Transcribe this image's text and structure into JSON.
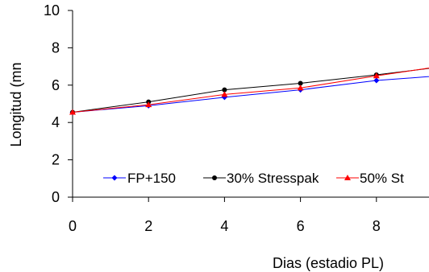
{
  "chart_data": {
    "type": "line",
    "xlabel": "Dias (estadio PL)",
    "ylabel": "Longitud (mn",
    "x_ticks": [
      "0",
      "2",
      "4",
      "6",
      "8"
    ],
    "y_ticks": [
      "0",
      "2",
      "4",
      "6",
      "8",
      "10"
    ],
    "xlim": [
      0,
      9.3
    ],
    "ylim": [
      0,
      10
    ],
    "x": [
      0,
      2,
      4,
      6,
      8,
      10
    ],
    "series": [
      {
        "name": "FP+150",
        "color": "#0000ff",
        "marker": "diamond",
        "values": [
          4.55,
          4.9,
          5.35,
          5.75,
          6.25,
          6.55
        ]
      },
      {
        "name": "30% Stresspak",
        "color": "#000000",
        "marker": "circle",
        "values": [
          4.55,
          5.1,
          5.75,
          6.1,
          6.55,
          7.05
        ]
      },
      {
        "name": "50% St",
        "color": "#ff0000",
        "marker": "triangle",
        "values": [
          4.55,
          4.95,
          5.5,
          5.85,
          6.5,
          7.1
        ]
      }
    ],
    "legend_position": "bottom-inside",
    "grid": false
  }
}
